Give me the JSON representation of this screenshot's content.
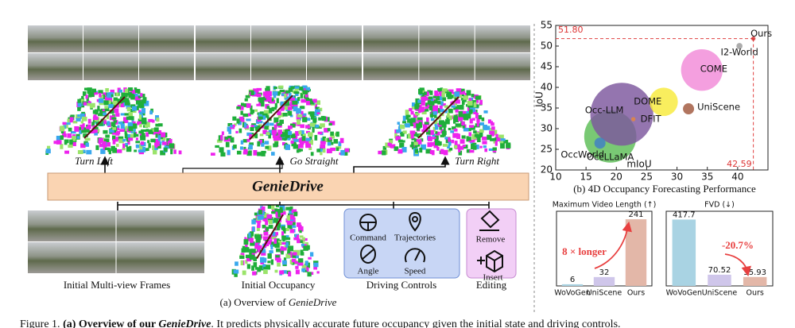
{
  "panel_a": {
    "turn_labels": [
      "Turn Left",
      "Go Straight",
      "Turn Right"
    ],
    "banner": "GenieDrive",
    "inputs": [
      "Initial Multi-view Frames",
      "Initial Occupancy",
      "Driving Controls",
      "Editing"
    ],
    "controls": [
      "Command",
      "Trajectories",
      "Angle",
      "Speed"
    ],
    "editing": [
      "Remove",
      "Insert"
    ],
    "caption_prefix": "(a) Overview of ",
    "caption_emphasis": "GenieDrive"
  },
  "chart_data": [
    {
      "type": "bubble",
      "caption": "(b) 4D Occupancy Forecasting Performance",
      "xlabel": "mIoU",
      "ylabel": "IoU",
      "labels": [
        "OccLLaMA",
        "Occ-LLM",
        "COME",
        "DOME",
        "OccWorld",
        "UniScene",
        "DFIT",
        "I2-World",
        "Ours"
      ],
      "x": [
        19.0,
        20.9,
        34.1,
        27.8,
        17.3,
        31.9,
        22.8,
        40.3,
        42.59
      ],
      "values": [
        28.1,
        33.5,
        44.2,
        36.5,
        26.5,
        34.8,
        32.3,
        50.0,
        51.8
      ],
      "sizes": [
        22,
        32,
        14,
        6.5,
        1,
        1,
        0.15,
        0.3,
        0.15
      ],
      "colors": [
        "#5cbd55",
        "#7d579e",
        "#f28ad8",
        "#f8ea3a",
        "#3f7fc6",
        "#a0573c",
        "#e8873a",
        "#9a9a9a",
        "#d63030"
      ],
      "xlim": [
        10,
        45
      ],
      "ylim": [
        20,
        55
      ],
      "xticks": [
        10,
        15,
        20,
        25,
        30,
        35,
        40
      ],
      "yticks": [
        20,
        25,
        30,
        35,
        40,
        45,
        50,
        55
      ],
      "reference_lines": {
        "x": {
          "value": 42.59,
          "label": "42.59"
        },
        "y": {
          "value": 51.8,
          "label": "51.80"
        }
      }
    },
    {
      "type": "bar",
      "title": "Maximum Video Length (↑)",
      "categories": [
        "WoVoGen",
        "UniScene",
        "Ours"
      ],
      "values": [
        6,
        32,
        241
      ],
      "colors": [
        "#a9d3e3",
        "#cfc6ea",
        "#e3b7a8"
      ],
      "ylim": [
        0,
        270
      ],
      "annotation": "8 × longer"
    },
    {
      "type": "bar",
      "title": "FVD (↓)",
      "categories": [
        "WoVoGen",
        "UniScene",
        "Ours"
      ],
      "values": [
        417.7,
        70.52,
        55.93
      ],
      "colors": [
        "#a9d3e3",
        "#cfc6ea",
        "#e3b7a8"
      ],
      "ylim": [
        0,
        470
      ],
      "annotation": "-20.7%"
    }
  ],
  "figure_caption": {
    "label": "Figure 1.",
    "bold": "(a) Overview of our ",
    "bold_italic": "GenieDrive",
    "text": ". It predicts physically accurate future occupancy given the initial state and driving controls."
  }
}
